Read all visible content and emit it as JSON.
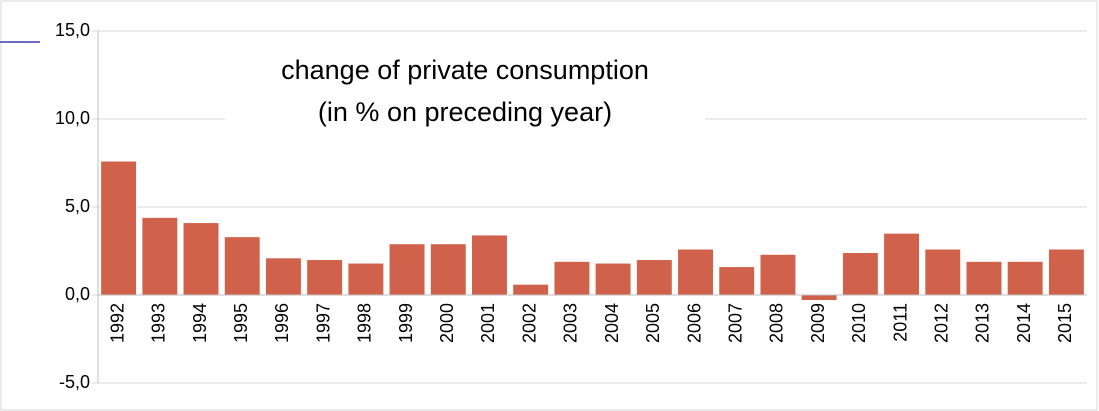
{
  "chart_data": {
    "type": "bar",
    "title": "change of private consumption",
    "subtitle": "(in % on preceding year)",
    "categories": [
      "1992",
      "1993",
      "1994",
      "1995",
      "1996",
      "1997",
      "1998",
      "1999",
      "2000",
      "2001",
      "2002",
      "2003",
      "2004",
      "2005",
      "2006",
      "2007",
      "2008",
      "2009",
      "2010",
      "2011",
      "2012",
      "2013",
      "2014",
      "2015"
    ],
    "values": [
      7.6,
      4.4,
      4.1,
      3.3,
      2.1,
      2.0,
      1.8,
      2.9,
      2.9,
      3.4,
      0.6,
      1.9,
      1.8,
      2.0,
      2.6,
      1.6,
      2.3,
      -0.3,
      2.4,
      3.5,
      2.6,
      1.9,
      1.9,
      2.6
    ],
    "color": "#d0614a",
    "ylim": [
      -5,
      15
    ],
    "yticks": [
      {
        "value": -5,
        "label": "-5,0"
      },
      {
        "value": 0,
        "label": "0,0"
      },
      {
        "value": 5,
        "label": "5,0"
      },
      {
        "value": 10,
        "label": "10,0"
      },
      {
        "value": 15,
        "label": "15,0"
      }
    ],
    "grid": true
  }
}
